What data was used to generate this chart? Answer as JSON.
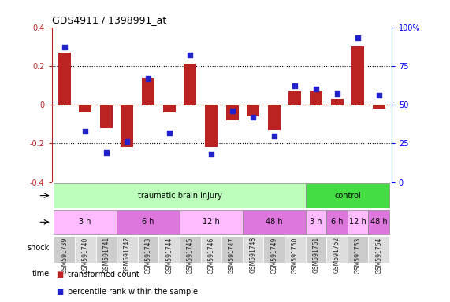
{
  "title": "GDS4911 / 1398991_at",
  "samples": [
    "GSM591739",
    "GSM591740",
    "GSM591741",
    "GSM591742",
    "GSM591743",
    "GSM591744",
    "GSM591745",
    "GSM591746",
    "GSM591747",
    "GSM591748",
    "GSM591749",
    "GSM591750",
    "GSM591751",
    "GSM591752",
    "GSM591753",
    "GSM591754"
  ],
  "bar_values": [
    0.27,
    -0.04,
    -0.12,
    -0.22,
    0.14,
    -0.04,
    0.21,
    -0.22,
    -0.08,
    -0.06,
    -0.13,
    0.07,
    0.07,
    0.03,
    0.3,
    -0.02
  ],
  "dot_values_pct": [
    87,
    33,
    19,
    26,
    67,
    32,
    82,
    18,
    46,
    42,
    30,
    62,
    60,
    57,
    93,
    56
  ],
  "bar_color": "#bb2222",
  "dot_color": "#2222cc",
  "ylim_left": [
    -0.4,
    0.4
  ],
  "ylim_right": [
    0,
    100
  ],
  "yticks_left": [
    -0.4,
    -0.2,
    0.0,
    0.2,
    0.4
  ],
  "yticks_right": [
    0,
    25,
    50,
    75,
    100
  ],
  "dotted_line_y": [
    0.2,
    -0.2
  ],
  "red_line_y": 0.0,
  "shock_groups": [
    {
      "label": "traumatic brain injury",
      "start": 0,
      "end": 11,
      "color": "#bbffbb"
    },
    {
      "label": "control",
      "start": 12,
      "end": 15,
      "color": "#44dd44"
    }
  ],
  "time_groups": [
    {
      "label": "3 h",
      "start": 0,
      "end": 2,
      "color": "#ffbbff"
    },
    {
      "label": "6 h",
      "start": 3,
      "end": 5,
      "color": "#dd77dd"
    },
    {
      "label": "12 h",
      "start": 6,
      "end": 8,
      "color": "#ffbbff"
    },
    {
      "label": "48 h",
      "start": 9,
      "end": 11,
      "color": "#dd77dd"
    },
    {
      "label": "3 h",
      "start": 12,
      "end": 12,
      "color": "#ffbbff"
    },
    {
      "label": "6 h",
      "start": 13,
      "end": 13,
      "color": "#dd77dd"
    },
    {
      "label": "12 h",
      "start": 14,
      "end": 14,
      "color": "#ffbbff"
    },
    {
      "label": "48 h",
      "start": 15,
      "end": 15,
      "color": "#dd77dd"
    }
  ],
  "legend": [
    {
      "label": "transformed count",
      "color": "#bb2222",
      "marker": "s"
    },
    {
      "label": "percentile rank within the sample",
      "color": "#2222cc",
      "marker": "s"
    }
  ],
  "bg_color": "#ffffff",
  "sample_box_color": "#cccccc",
  "sample_box_alt_color": "#dddddd"
}
